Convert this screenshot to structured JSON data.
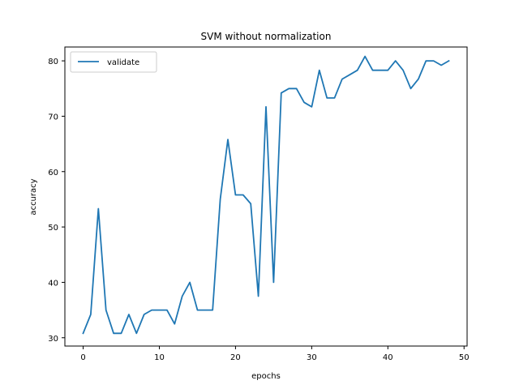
{
  "chart_data": {
    "type": "line",
    "title": "SVM without normalization",
    "xlabel": "epochs",
    "ylabel": "accuracy",
    "xlim": [
      -2.4,
      50.4
    ],
    "ylim": [
      28.5,
      82.5
    ],
    "xticks": [
      0,
      10,
      20,
      30,
      40,
      50
    ],
    "yticks": [
      30,
      40,
      50,
      60,
      70,
      80
    ],
    "grid": false,
    "legend_position": "top-left",
    "series": [
      {
        "name": "validate",
        "color": "#1f77b4",
        "x": [
          0,
          1,
          2,
          3,
          4,
          5,
          6,
          7,
          8,
          9,
          10,
          11,
          12,
          13,
          14,
          15,
          16,
          17,
          18,
          19,
          20,
          21,
          22,
          23,
          24,
          25,
          26,
          27,
          28,
          29,
          30,
          31,
          32,
          33,
          34,
          35,
          36,
          37,
          38,
          39,
          40,
          41,
          42,
          43,
          44,
          45,
          46,
          47,
          48
        ],
        "y": [
          30.8,
          34.2,
          53.3,
          35.0,
          30.8,
          30.8,
          34.2,
          30.8,
          34.2,
          35.0,
          35.0,
          35.0,
          32.5,
          37.5,
          40.0,
          35.0,
          35.0,
          35.0,
          55.0,
          65.8,
          55.8,
          55.8,
          54.2,
          37.5,
          71.7,
          40.0,
          74.2,
          75.0,
          75.0,
          72.5,
          71.7,
          78.3,
          73.3,
          73.3,
          76.7,
          77.5,
          78.3,
          80.8,
          78.3,
          78.3,
          78.3,
          80.0,
          78.3,
          75.0,
          76.7,
          80.0,
          80.0,
          79.2,
          80.0
        ]
      }
    ]
  }
}
